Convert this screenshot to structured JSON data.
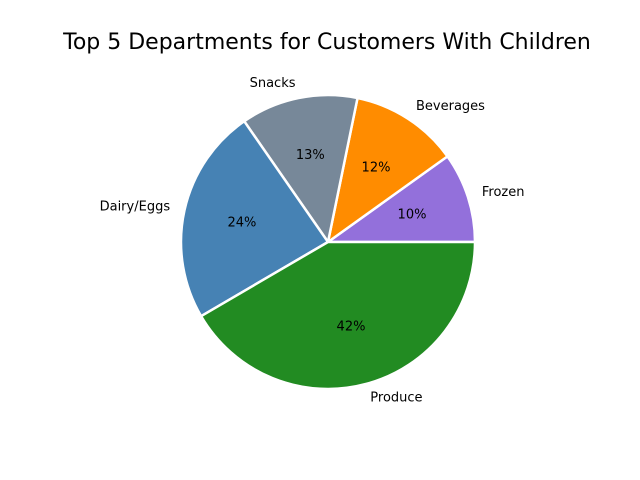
{
  "chart_data": {
    "type": "pie",
    "title": "Top 5 Departments for Customers With Children",
    "start_angle_deg": 0,
    "direction": "counterclockwise",
    "slices": [
      {
        "label": "Frozen",
        "value": 10,
        "pct_label": "10%",
        "color": "#9370db"
      },
      {
        "label": "Beverages",
        "value": 12,
        "pct_label": "12%",
        "color": "#ff8c00"
      },
      {
        "label": "Snacks",
        "value": 13,
        "pct_label": "13%",
        "color": "#778899"
      },
      {
        "label": "Dairy/Eggs",
        "value": 24,
        "pct_label": "24%",
        "color": "#4682b4"
      },
      {
        "label": "Produce",
        "value": 42,
        "pct_label": "42%",
        "color": "#228b22"
      }
    ],
    "edge_color": "#ffffff"
  }
}
